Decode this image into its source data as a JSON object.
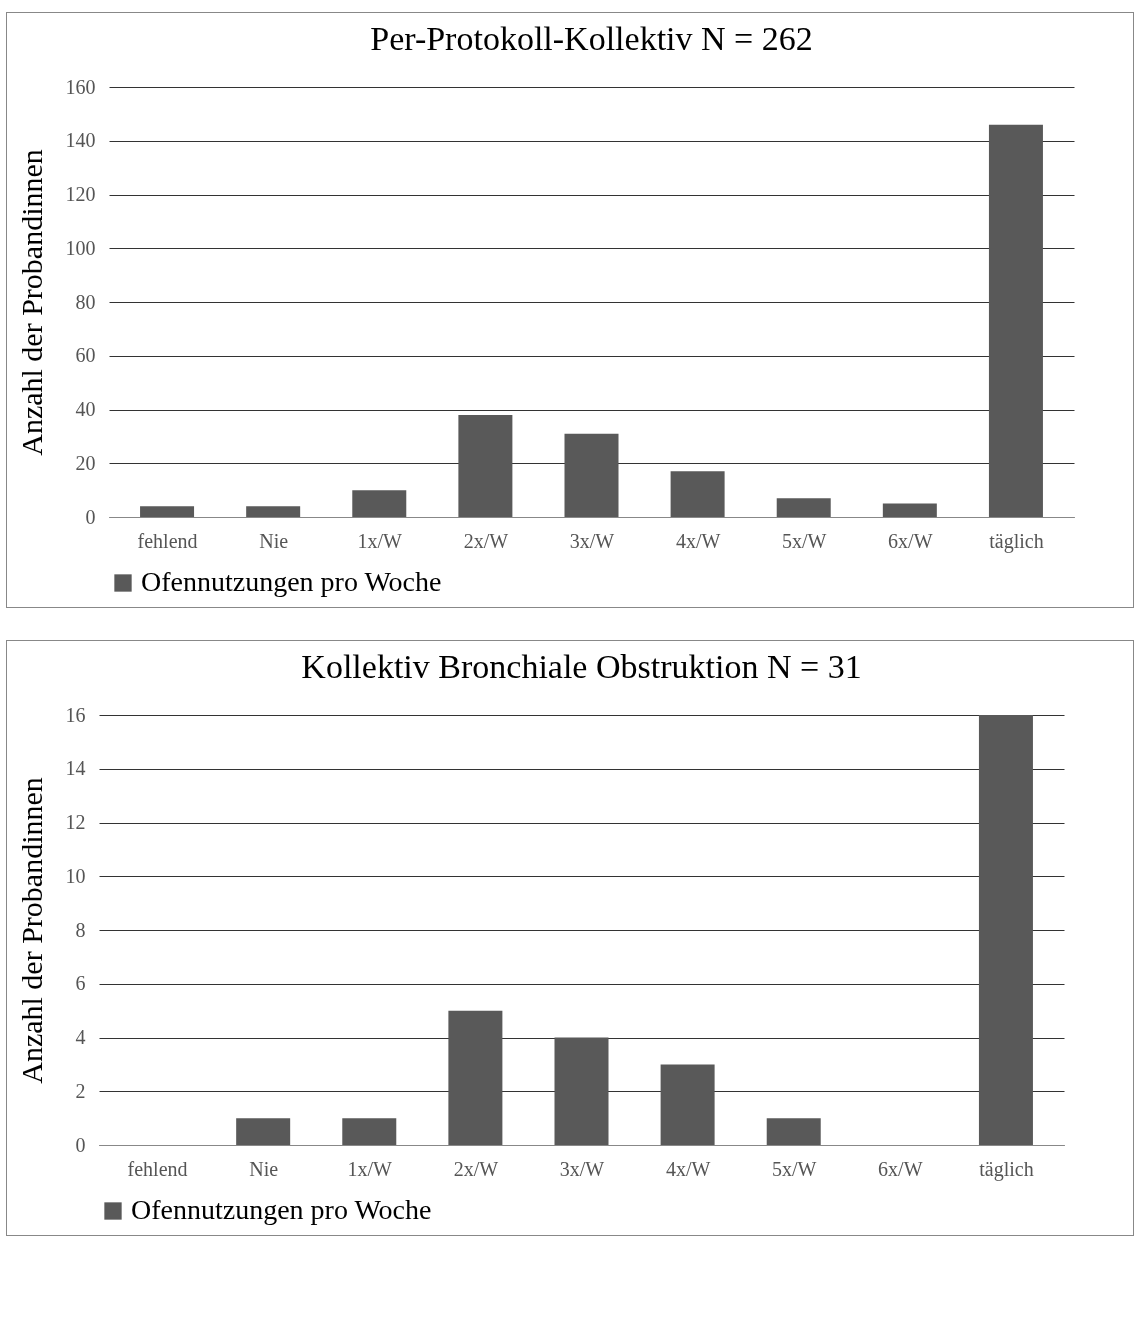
{
  "chart_data": [
    {
      "type": "bar",
      "title": "Per-Protokoll-Kollektiv N = 262",
      "ylabel": "Anzahl der Probandinnen",
      "categories": [
        "fehlend",
        "Nie",
        "1x/W",
        "2x/W",
        "3x/W",
        "4x/W",
        "5x/W",
        "6x/W",
        "täglich"
      ],
      "series": [
        {
          "name": "Ofennutzungen pro Woche",
          "color": "#595959",
          "values": [
            4,
            4,
            10,
            38,
            31,
            17,
            7,
            5,
            146
          ]
        }
      ],
      "ylim": [
        0,
        160
      ],
      "yticks": [
        0,
        20,
        40,
        60,
        80,
        100,
        120,
        140,
        160
      ],
      "grid": "y",
      "legend": "bottom"
    },
    {
      "type": "bar",
      "title": "Kollektiv Bronchiale Obstruktion N = 31",
      "ylabel": "Anzahl der Probandinnen",
      "categories": [
        "fehlend",
        "Nie",
        "1x/W",
        "2x/W",
        "3x/W",
        "4x/W",
        "5x/W",
        "6x/W",
        "täglich"
      ],
      "series": [
        {
          "name": "Ofennutzungen pro Woche",
          "color": "#595959",
          "values": [
            0,
            1,
            1,
            5,
            4,
            3,
            1,
            0,
            16
          ]
        }
      ],
      "ylim": [
        0,
        16
      ],
      "yticks": [
        0,
        2,
        4,
        6,
        8,
        10,
        12,
        14,
        16
      ],
      "grid": "y",
      "legend": "bottom"
    }
  ]
}
